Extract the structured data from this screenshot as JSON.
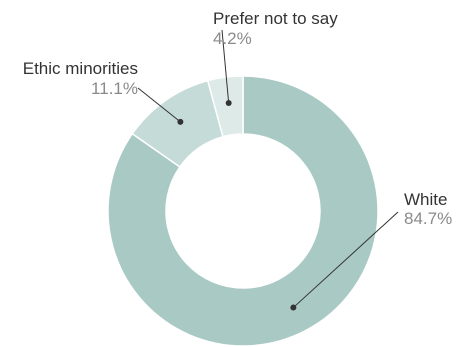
{
  "chart_data": {
    "type": "pie",
    "donut": true,
    "title": "",
    "slices": [
      {
        "label": "White",
        "value": 84.7,
        "value_label": "84.7%",
        "color": "#a9c9c5"
      },
      {
        "label": "Ethic minorities",
        "value": 11.1,
        "value_label": "11.1%",
        "color": "#c4dbd8"
      },
      {
        "label": "Prefer not to say",
        "value": 4.2,
        "value_label": "4.2%",
        "color": "#deeae8"
      }
    ],
    "legend": "none",
    "slice_order": "clockwise from top"
  }
}
